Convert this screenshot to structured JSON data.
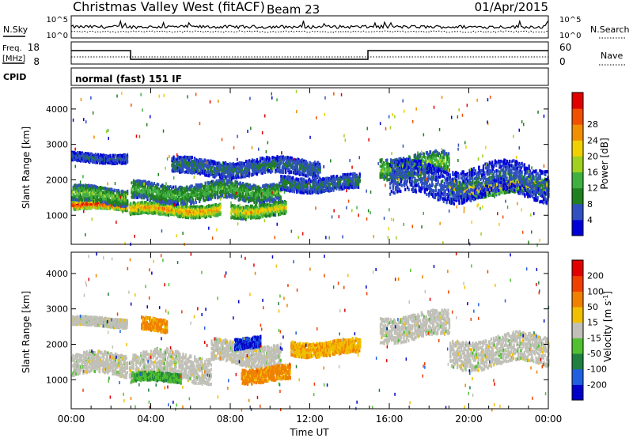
{
  "header": {
    "station": "Christmas Valley West (fitACF)",
    "beam": "Beam 23",
    "date": "01/Apr/2015"
  },
  "aux_panels": {
    "nsky_label": "N.Sky",
    "nsky_ticks": [
      "10^5",
      "10^0"
    ],
    "nsearch_label": "N.Search",
    "nsearch_ticks": [
      "10^5",
      "10^0"
    ],
    "freq_label_line1": "Freq.",
    "freq_label_line2": "[MHz]",
    "freq_ticks": [
      "18",
      "8"
    ],
    "nave_label": "Nave",
    "nave_ticks": [
      "60",
      "0"
    ],
    "cpid_label": "CPID",
    "cpid_text": "normal (fast) 151 IF"
  },
  "colors": {
    "power": [
      "#0000d8",
      "#3050c0",
      "#208020",
      "#40b040",
      "#a0d020",
      "#f0d000",
      "#f09000",
      "#f05000",
      "#e00000"
    ],
    "velocity": [
      "#0000c8",
      "#2060e0",
      "#208040",
      "#50c030",
      "#c0c0b8",
      "#f0c000",
      "#f08000",
      "#f04000",
      "#e00000"
    ],
    "ground_scatter": "#c0c0b8"
  },
  "chart_data": [
    {
      "type": "heatmap",
      "title": "",
      "xlabel": "Time UT",
      "ylabel": "Slant Range [km]",
      "xlim": [
        "00:00",
        "24:00"
      ],
      "ylim": [
        180,
        4600
      ],
      "x_ticks": [
        "00:00",
        "04:00",
        "08:00",
        "12:00",
        "16:00",
        "20:00",
        "00:00"
      ],
      "y_ticks": [
        "1000",
        "2000",
        "3000",
        "4000"
      ],
      "colorbar_label": "Power [dB]",
      "colorbar_ticks": [
        "4",
        "8",
        "12",
        "16",
        "20",
        "24",
        "28"
      ],
      "colorbar_range": [
        0,
        30
      ],
      "bands": [
        {
          "t0": 0.0,
          "t1": 2.8,
          "center_km": 1270,
          "halfwidth_km": 120,
          "level": 0.95
        },
        {
          "t0": 0.0,
          "t1": 2.8,
          "center_km": 1550,
          "halfwidth_km": 220,
          "level": 0.45
        },
        {
          "t0": 0.0,
          "t1": 2.8,
          "center_km": 2620,
          "halfwidth_km": 120,
          "level": 0.2
        },
        {
          "t0": 2.9,
          "t1": 7.5,
          "center_km": 1150,
          "halfwidth_km": 160,
          "level": 0.75
        },
        {
          "t0": 3.0,
          "t1": 7.5,
          "center_km": 1650,
          "halfwidth_km": 250,
          "level": 0.4
        },
        {
          "t0": 7.5,
          "t1": 10.5,
          "center_km": 1700,
          "halfwidth_km": 250,
          "level": 0.4
        },
        {
          "t0": 8.0,
          "t1": 10.8,
          "center_km": 1150,
          "halfwidth_km": 180,
          "level": 0.65
        },
        {
          "t0": 5.0,
          "t1": 12.5,
          "center_km": 2350,
          "halfwidth_km": 220,
          "level": 0.25
        },
        {
          "t0": 10.5,
          "t1": 14.5,
          "center_km": 1900,
          "halfwidth_km": 200,
          "level": 0.25
        },
        {
          "t0": 15.5,
          "t1": 19.0,
          "center_km": 2400,
          "halfwidth_km": 300,
          "level": 0.45
        },
        {
          "t0": 19.0,
          "t1": 24.0,
          "center_km": 1800,
          "halfwidth_km": 230,
          "level": 0.7
        },
        {
          "t0": 16.0,
          "t1": 24.0,
          "center_km": 1950,
          "halfwidth_km": 450,
          "level": 0.2
        }
      ]
    },
    {
      "type": "heatmap",
      "title": "",
      "xlabel": "Time UT",
      "ylabel": "Slant Range [km]",
      "xlim": [
        "00:00",
        "24:00"
      ],
      "ylim": [
        180,
        4600
      ],
      "x_ticks": [
        "00:00",
        "04:00",
        "08:00",
        "12:00",
        "16:00",
        "20:00",
        "00:00"
      ],
      "y_ticks": [
        "1000",
        "2000",
        "3000",
        "4000"
      ],
      "colorbar_label": "Velocity [m s^-1]",
      "colorbar_ticks": [
        "200",
        "100",
        "50",
        "15",
        "-15",
        "-50",
        "-100",
        "-200"
      ],
      "colorbar_range": [
        -250,
        250
      ],
      "bands": [
        {
          "t0": 0.0,
          "t1": 2.8,
          "center_km": 1400,
          "halfwidth_km": 300,
          "level": 0.5
        },
        {
          "t0": 0.0,
          "t1": 2.8,
          "center_km": 2620,
          "halfwidth_km": 120,
          "level": 0.5
        },
        {
          "t0": 2.9,
          "t1": 7.0,
          "center_km": 1350,
          "halfwidth_km": 380,
          "level": 0.5
        },
        {
          "t0": 3.0,
          "t1": 5.5,
          "center_km": 1050,
          "halfwidth_km": 120,
          "level": 0.35
        },
        {
          "t0": 3.5,
          "t1": 4.8,
          "center_km": 2550,
          "halfwidth_km": 180,
          "level": 0.7
        },
        {
          "t0": 7.0,
          "t1": 10.5,
          "center_km": 1750,
          "halfwidth_km": 300,
          "level": 0.5
        },
        {
          "t0": 8.5,
          "t1": 11.0,
          "center_km": 1150,
          "halfwidth_km": 200,
          "level": 0.7
        },
        {
          "t0": 8.2,
          "t1": 9.5,
          "center_km": 2050,
          "halfwidth_km": 150,
          "level": 0.1
        },
        {
          "t0": 11.0,
          "t1": 14.5,
          "center_km": 1900,
          "halfwidth_km": 200,
          "level": 0.65
        },
        {
          "t0": 15.5,
          "t1": 19.0,
          "center_km": 2500,
          "halfwidth_km": 350,
          "level": 0.5
        },
        {
          "t0": 19.0,
          "t1": 24.0,
          "center_km": 1800,
          "halfwidth_km": 400,
          "level": 0.5
        }
      ]
    }
  ]
}
